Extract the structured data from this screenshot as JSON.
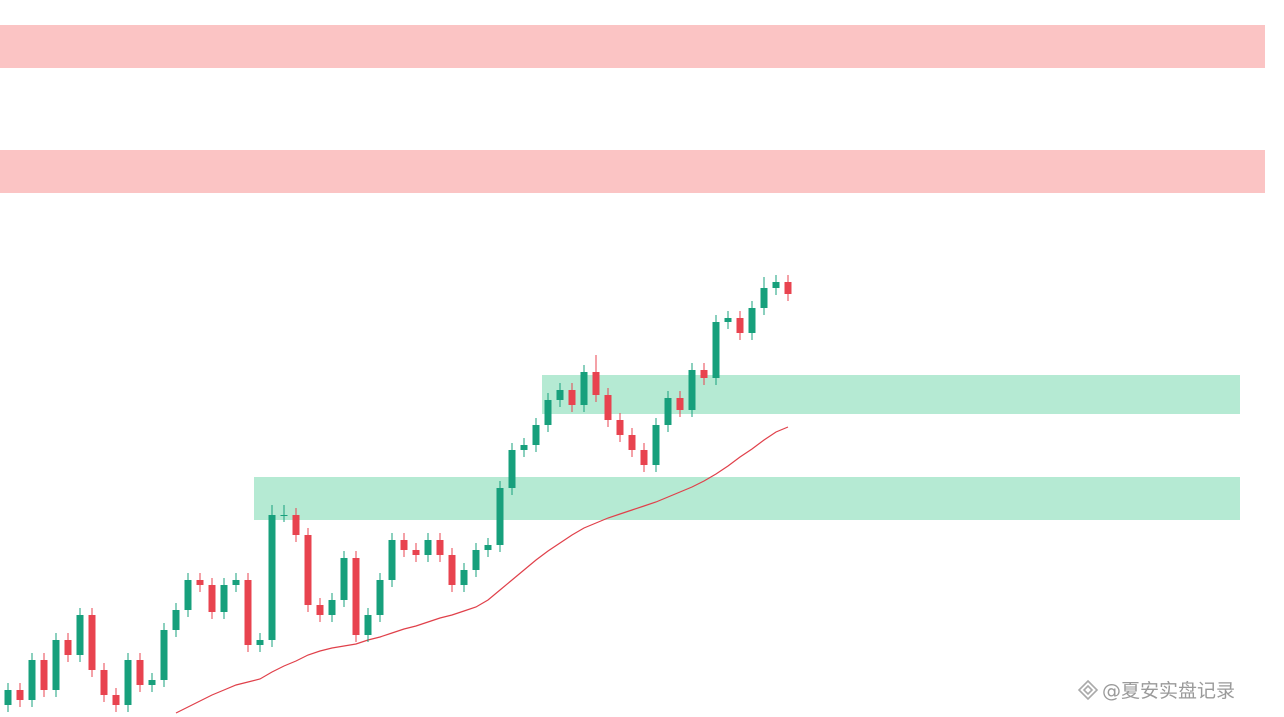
{
  "chart_data": {
    "type": "candlestick",
    "open": [
      12,
      27,
      17,
      57,
      27,
      77,
      62,
      102,
      47,
      22,
      12,
      57,
      32,
      37,
      87,
      107,
      137,
      132,
      105,
      132,
      137,
      72,
      77,
      202,
      202,
      182,
      112,
      102,
      117,
      159,
      82,
      102,
      137,
      177,
      167,
      162,
      177,
      162,
      132,
      147,
      167,
      172,
      229,
      267,
      272,
      292,
      317,
      327,
      312,
      345,
      322,
      297,
      282,
      267,
      252,
      292,
      319,
      307,
      347,
      339,
      395,
      399,
      384,
      409,
      429,
      435
    ],
    "high": [
      34,
      34,
      64,
      64,
      84,
      84,
      109,
      109,
      54,
      29,
      64,
      64,
      44,
      94,
      114,
      144,
      144,
      139,
      139,
      144,
      144,
      84,
      212,
      212,
      209,
      189,
      119,
      124,
      166,
      166,
      109,
      144,
      184,
      184,
      174,
      184,
      184,
      169,
      154,
      174,
      179,
      236,
      274,
      279,
      299,
      324,
      334,
      334,
      352,
      362,
      329,
      304,
      289,
      274,
      299,
      326,
      326,
      354,
      354,
      402,
      406,
      406,
      416,
      440,
      442,
      442
    ],
    "low": [
      5,
      10,
      10,
      20,
      20,
      55,
      55,
      40,
      15,
      5,
      5,
      25,
      25,
      30,
      80,
      100,
      125,
      98,
      98,
      125,
      65,
      65,
      70,
      195,
      175,
      105,
      95,
      95,
      110,
      75,
      75,
      95,
      130,
      160,
      155,
      155,
      155,
      125,
      125,
      140,
      160,
      165,
      222,
      260,
      265,
      285,
      310,
      305,
      305,
      315,
      290,
      275,
      260,
      245,
      245,
      285,
      300,
      300,
      332,
      332,
      388,
      377,
      377,
      402,
      422,
      416
    ],
    "close": [
      27,
      17,
      57,
      27,
      77,
      62,
      102,
      47,
      22,
      12,
      57,
      32,
      37,
      87,
      107,
      137,
      132,
      105,
      132,
      137,
      72,
      77,
      202,
      202,
      182,
      112,
      102,
      117,
      159,
      82,
      102,
      137,
      177,
      167,
      162,
      177,
      162,
      132,
      147,
      167,
      172,
      229,
      267,
      272,
      292,
      317,
      327,
      312,
      345,
      322,
      297,
      282,
      267,
      252,
      292,
      319,
      307,
      347,
      339,
      395,
      399,
      384,
      409,
      429,
      435,
      423
    ],
    "ma": [
      null,
      null,
      null,
      null,
      null,
      null,
      null,
      null,
      null,
      null,
      null,
      null,
      null,
      null,
      4,
      10,
      16,
      22,
      27,
      32,
      35,
      38,
      45,
      51,
      56,
      62,
      66,
      69,
      71,
      73,
      77,
      80,
      84,
      88,
      91,
      95,
      99,
      102,
      106,
      110,
      117,
      127,
      137,
      147,
      157,
      166,
      174,
      182,
      189,
      194,
      199,
      203,
      207,
      211,
      215,
      220,
      225,
      230,
      236,
      243,
      251,
      260,
      268,
      277,
      285,
      290
    ],
    "ma_color": "#e0404a",
    "up_color": "#17a07c",
    "down_color": "#e8434f",
    "ylim": [
      0,
      717
    ],
    "zones": [
      {
        "from": 0,
        "low": 649,
        "high": 692,
        "color": "#fbc4c4"
      },
      {
        "from": 0,
        "low": 524,
        "high": 567,
        "color": "#fbc4c4"
      },
      {
        "from": 45,
        "low": 303,
        "high": 342,
        "color": "#b5ead3"
      },
      {
        "from": 21,
        "low": 197,
        "high": 240,
        "color": "#b5ead3"
      }
    ],
    "watermark": "@夏安实盘记录"
  }
}
